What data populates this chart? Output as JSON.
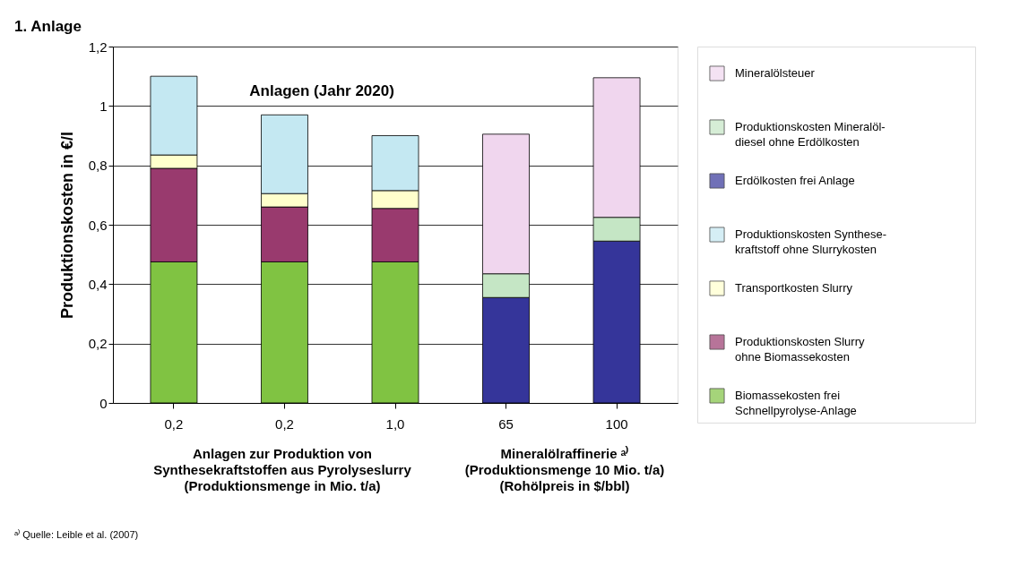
{
  "chart_data": {
    "type": "bar",
    "stacked": true,
    "title": "1. Anlage",
    "ylabel": "Produktionskosten in €/l",
    "categories": [
      "0,2",
      "0,2",
      "1,0",
      "65",
      "100"
    ],
    "series": [
      {
        "name": "Biomassekosten frei\nSchnellpyrolyse-Anlage",
        "color": "#80c342",
        "values": [
          0.475,
          0.475,
          0.475,
          null,
          null
        ]
      },
      {
        "name": "Produktionskosten Slurry\nohne Biomassekosten",
        "color": "#993a6e",
        "values": [
          0.315,
          0.185,
          0.18,
          null,
          null
        ]
      },
      {
        "name": "Transportkosten Slurry",
        "color": "#ffffcc",
        "values": [
          0.045,
          0.045,
          0.06,
          null,
          null
        ]
      },
      {
        "name": "Produktionskosten Synthese-\nkraftstoff ohne Slurrykosten",
        "color": "#c4e8f2",
        "values": [
          0.265,
          0.265,
          0.185,
          null,
          null
        ]
      },
      {
        "name": "Erdölkosten frei Anlage",
        "color": "#35359a",
        "values": [
          null,
          null,
          null,
          0.355,
          0.545
        ]
      },
      {
        "name": "Produktionskosten Mineralöl-\ndiesel ohne Erdölkosten",
        "color": "#c5e6c5",
        "values": [
          null,
          null,
          null,
          0.08,
          0.08
        ]
      },
      {
        "name": "Mineralölsteuer",
        "color": "#f0d6ee",
        "values": [
          null,
          null,
          null,
          0.47,
          0.47
        ]
      }
    ],
    "ylim": [
      0,
      1.2
    ],
    "yticks": [
      0,
      {
        "value": 0.2,
        "label": "0,2"
      },
      {
        "value": 0.4,
        "label": "0,4"
      },
      {
        "value": 0.6,
        "label": "0,6"
      },
      {
        "value": 0.8,
        "label": "0,8"
      },
      1,
      {
        "value": 1.2,
        "label": "1,2"
      }
    ],
    "grid": "y",
    "legend": "right",
    "annotations": [
      {
        "text": "Anlagen (Jahr 2020)"
      },
      {
        "text": "Anlagen zur Produktion von\nSynthesekraftstoffen aus Pyrolyseslurry\n(Produktionsmenge in Mio. t/a)"
      },
      {
        "text": "Mineralölraffinerie ᵃ⁾\n(Produktionsmenge 10 Mio. t/a)\n(Rohölpreis in $/bbl)"
      },
      {
        "text": "ᵃ⁾ Quelle: Leible et al. (2007)"
      }
    ]
  }
}
